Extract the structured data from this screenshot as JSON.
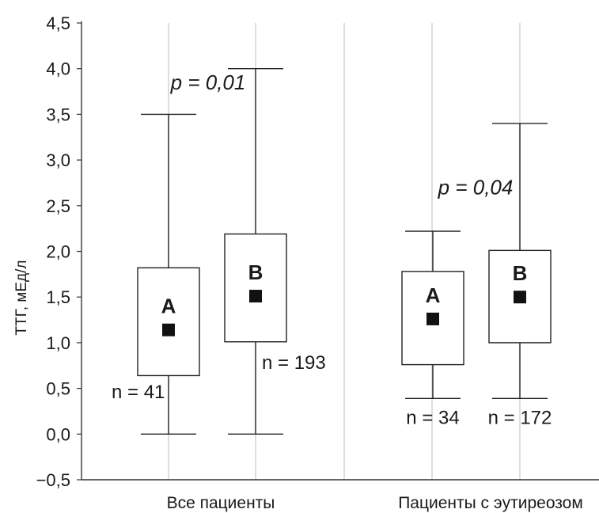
{
  "chart_data": {
    "type": "boxplot",
    "ylabel": "ТТГ, мЕд/л",
    "ylim": [
      -0.5,
      4.5
    ],
    "y_ticks": [
      "−0,5",
      "0,0",
      "0,5",
      "1,0",
      "1,5",
      "2,0",
      "2,5",
      "3,0",
      "3,5",
      "4,0",
      "4,5"
    ],
    "y_tick_values": [
      -0.5,
      0.0,
      0.5,
      1.0,
      1.5,
      2.0,
      2.5,
      3.0,
      3.5,
      4.0,
      4.5
    ],
    "grid": "vertical",
    "groups": [
      {
        "name": "Все пациенты",
        "p_value": "p = 0,01",
        "p_value_y": 3.85,
        "boxes": [
          {
            "label": "A",
            "n": "n = 41",
            "whisker_low": 0.0,
            "q1": 0.64,
            "mean": 1.14,
            "q3": 1.82,
            "whisker_high": 3.5
          },
          {
            "label": "B",
            "n": "n = 193",
            "whisker_low": 0.0,
            "q1": 1.01,
            "mean": 1.51,
            "q3": 2.19,
            "whisker_high": 4.0
          }
        ]
      },
      {
        "name": "Пациенты с эутиреозом",
        "p_value": "p = 0,04",
        "p_value_y": 2.7,
        "boxes": [
          {
            "label": "A",
            "n": "n = 34",
            "whisker_low": 0.39,
            "q1": 0.76,
            "mean": 1.26,
            "q3": 1.78,
            "whisker_high": 2.22
          },
          {
            "label": "B",
            "n": "n = 172",
            "whisker_low": 0.39,
            "q1": 1.0,
            "mean": 1.5,
            "q3": 2.01,
            "whisker_high": 3.4
          }
        ]
      }
    ]
  }
}
